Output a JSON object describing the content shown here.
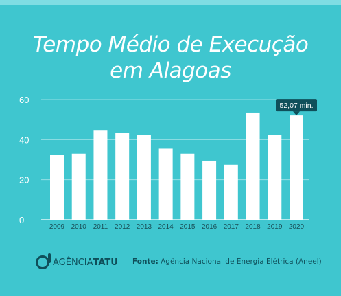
{
  "title_line1": "Tempo Médio de Execução",
  "title_line2": "em Alagoas",
  "brand": {
    "name_part1": "AGÊNCIA",
    "name_part2": "TATU"
  },
  "source": {
    "label": "Fonte:",
    "text": "Agência Nacional de Energia Elétrica (Aneel)"
  },
  "colors": {
    "background": "#3fc6cf",
    "bar": "#ffffff",
    "text_dark": "#0f4f5a",
    "callout_bg": "#0f4f5a"
  },
  "chart_data": {
    "type": "bar",
    "title": "Tempo Médio de Execução em Alagoas",
    "categories": [
      "2009",
      "2010",
      "2011",
      "2012",
      "2013",
      "2014",
      "2015",
      "2016",
      "2017",
      "2018",
      "2019",
      "2020"
    ],
    "values": [
      32.5,
      33,
      44.5,
      43.5,
      42.5,
      35.5,
      33,
      29.5,
      27.5,
      53.5,
      42.5,
      52.07
    ],
    "yticks": [
      0,
      20,
      40,
      60
    ],
    "ylim": [
      0,
      60
    ],
    "grid": true,
    "annotation": {
      "category": "2020",
      "text": "52,07 min."
    }
  }
}
